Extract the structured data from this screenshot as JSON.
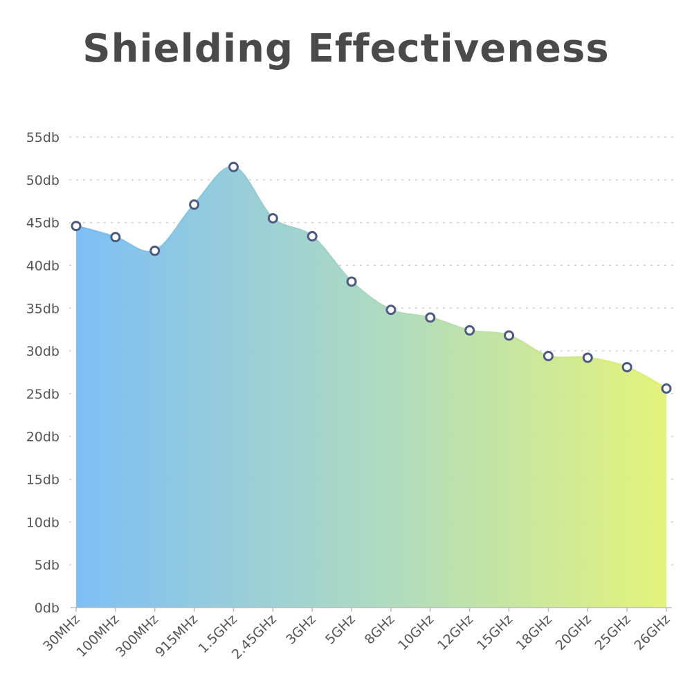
{
  "chart_data": {
    "type": "area",
    "title": "Shielding Effectiveness",
    "xlabel": "",
    "ylabel": "",
    "categories": [
      "30MHz",
      "100MHz",
      "300MHz",
      "915MHz",
      "1.5GHz",
      "2.45GHz",
      "3GHz",
      "5GHz",
      "8GHz",
      "10GHz",
      "12GHz",
      "15GHz",
      "18GHz",
      "20GHz",
      "25GHz",
      "26GHz"
    ],
    "values": [
      44.6,
      43.3,
      41.7,
      47.1,
      51.5,
      45.5,
      43.4,
      38.1,
      34.8,
      33.9,
      32.4,
      31.8,
      29.4,
      29.2,
      28.1,
      25.6
    ],
    "y_ticks": [
      "0db",
      "5db",
      "10db",
      "15db",
      "20db",
      "25db",
      "30db",
      "35db",
      "40db",
      "45db",
      "50db",
      "55db"
    ],
    "ylim": [
      0,
      55
    ],
    "grid": "horizontal dotted",
    "colors": {
      "gradient_start": "#78bbf4",
      "gradient_mid": "#a8d8c0",
      "gradient_end": "#e2f274",
      "marker_stroke": "#4d5b82",
      "line": "#6fb0e8"
    }
  }
}
